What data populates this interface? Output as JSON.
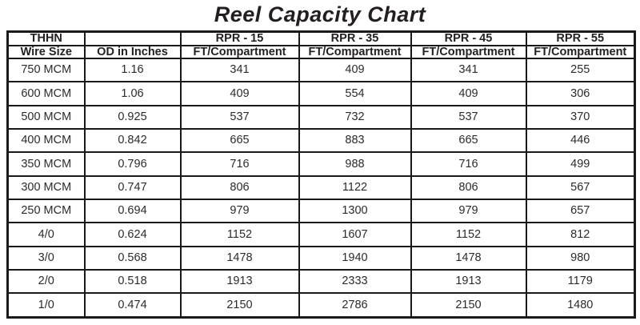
{
  "title": "Reel Capacity Chart",
  "colors": {
    "border": "#1a1a1a",
    "header_text": "#231f20",
    "data_text": "#2d2a2b",
    "background": "#ffffff"
  },
  "chart_data": {
    "type": "table",
    "title": "Reel Capacity Chart",
    "header_row_1": [
      "THHN",
      "",
      "RPR - 15",
      "RPR - 35",
      "RPR - 45",
      "RPR - 55"
    ],
    "header_row_2": [
      "Wire Size",
      "OD in Inches",
      "FT/Compartment",
      "FT/Compartment",
      "FT/Compartment",
      "FT/Compartment"
    ],
    "columns": [
      "Wire Size",
      "OD in Inches",
      "RPR - 15 FT/Compartment",
      "RPR - 35 FT/Compartment",
      "RPR - 45 FT/Compartment",
      "RPR - 55 FT/Compartment"
    ],
    "rows": [
      [
        "750 MCM",
        "1.16",
        "341",
        "409",
        "341",
        "255"
      ],
      [
        "600 MCM",
        "1.06",
        "409",
        "554",
        "409",
        "306"
      ],
      [
        "500 MCM",
        "0.925",
        "537",
        "732",
        "537",
        "370"
      ],
      [
        "400 MCM",
        "0.842",
        "665",
        "883",
        "665",
        "446"
      ],
      [
        "350 MCM",
        "0.796",
        "716",
        "988",
        "716",
        "499"
      ],
      [
        "300 MCM",
        "0.747",
        "806",
        "1122",
        "806",
        "567"
      ],
      [
        "250 MCM",
        "0.694",
        "979",
        "1300",
        "979",
        "657"
      ],
      [
        "4/0",
        "0.624",
        "1152",
        "1607",
        "1152",
        "812"
      ],
      [
        "3/0",
        "0.568",
        "1478",
        "1940",
        "1478",
        "980"
      ],
      [
        "2/0",
        "0.518",
        "1913",
        "2333",
        "1913",
        "1179"
      ],
      [
        "1/0",
        "0.474",
        "2150",
        "2786",
        "2150",
        "1480"
      ]
    ]
  }
}
